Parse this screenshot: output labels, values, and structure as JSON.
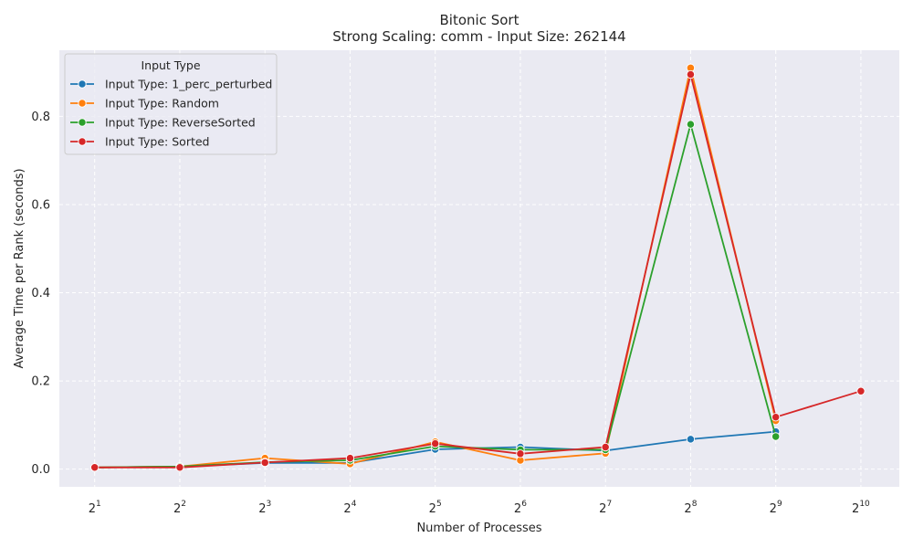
{
  "chart_data": {
    "type": "line",
    "title": "Bitonic Sort",
    "subtitle": "Strong Scaling: comm - Input Size: 262144",
    "xlabel": "Number of Processes",
    "ylabel": "Average Time per Rank (seconds)",
    "x_scale": "log2",
    "x_ticks": [
      {
        "value": 2,
        "base": "2",
        "exp": "1"
      },
      {
        "value": 4,
        "base": "2",
        "exp": "2"
      },
      {
        "value": 8,
        "base": "2",
        "exp": "3"
      },
      {
        "value": 16,
        "base": "2",
        "exp": "4"
      },
      {
        "value": 32,
        "base": "2",
        "exp": "5"
      },
      {
        "value": 64,
        "base": "2",
        "exp": "6"
      },
      {
        "value": 128,
        "base": "2",
        "exp": "7"
      },
      {
        "value": 256,
        "base": "2",
        "exp": "8"
      },
      {
        "value": 512,
        "base": "2",
        "exp": "9"
      },
      {
        "value": 1024,
        "base": "2",
        "exp": "10"
      }
    ],
    "xlim": [
      1.5,
      1400
    ],
    "ylim": [
      -0.04,
      0.95
    ],
    "y_ticks": [
      "0.0",
      "0.2",
      "0.4",
      "0.6",
      "0.8"
    ],
    "grid": true,
    "legend": {
      "title": "Input Type",
      "placement": "top-left"
    },
    "series": [
      {
        "name": "Input Type: 1_perc_perturbed",
        "color": "#1f77b4",
        "points": [
          {
            "x": 2,
            "y": 0.004
          },
          {
            "x": 4,
            "y": 0.006
          },
          {
            "x": 8,
            "y": 0.014
          },
          {
            "x": 16,
            "y": 0.014
          },
          {
            "x": 32,
            "y": 0.045
          },
          {
            "x": 64,
            "y": 0.05
          },
          {
            "x": 128,
            "y": 0.042
          },
          {
            "x": 256,
            "y": 0.068
          },
          {
            "x": 512,
            "y": 0.085
          }
        ]
      },
      {
        "name": "Input Type: Random",
        "color": "#ff7f0e",
        "points": [
          {
            "x": 2,
            "y": 0.004
          },
          {
            "x": 4,
            "y": 0.006
          },
          {
            "x": 8,
            "y": 0.025
          },
          {
            "x": 16,
            "y": 0.012
          },
          {
            "x": 32,
            "y": 0.062
          },
          {
            "x": 64,
            "y": 0.02
          },
          {
            "x": 128,
            "y": 0.036
          },
          {
            "x": 256,
            "y": 0.91
          },
          {
            "x": 512,
            "y": 0.11
          }
        ]
      },
      {
        "name": "Input Type: ReverseSorted",
        "color": "#2ca02c",
        "points": [
          {
            "x": 2,
            "y": 0.004
          },
          {
            "x": 4,
            "y": 0.006
          },
          {
            "x": 8,
            "y": 0.016
          },
          {
            "x": 16,
            "y": 0.02
          },
          {
            "x": 32,
            "y": 0.052
          },
          {
            "x": 64,
            "y": 0.044
          },
          {
            "x": 128,
            "y": 0.044
          },
          {
            "x": 256,
            "y": 0.782
          },
          {
            "x": 512,
            "y": 0.074
          }
        ]
      },
      {
        "name": "Input Type: Sorted",
        "color": "#d62728",
        "points": [
          {
            "x": 2,
            "y": 0.004
          },
          {
            "x": 4,
            "y": 0.004
          },
          {
            "x": 8,
            "y": 0.015
          },
          {
            "x": 16,
            "y": 0.025
          },
          {
            "x": 32,
            "y": 0.058
          },
          {
            "x": 64,
            "y": 0.035
          },
          {
            "x": 128,
            "y": 0.05
          },
          {
            "x": 256,
            "y": 0.895
          },
          {
            "x": 512,
            "y": 0.118
          },
          {
            "x": 1024,
            "y": 0.177
          }
        ]
      }
    ],
    "colors": {
      "plot_background": "#eaeaf2",
      "grid": "#ffffff",
      "text": "#262626"
    }
  }
}
